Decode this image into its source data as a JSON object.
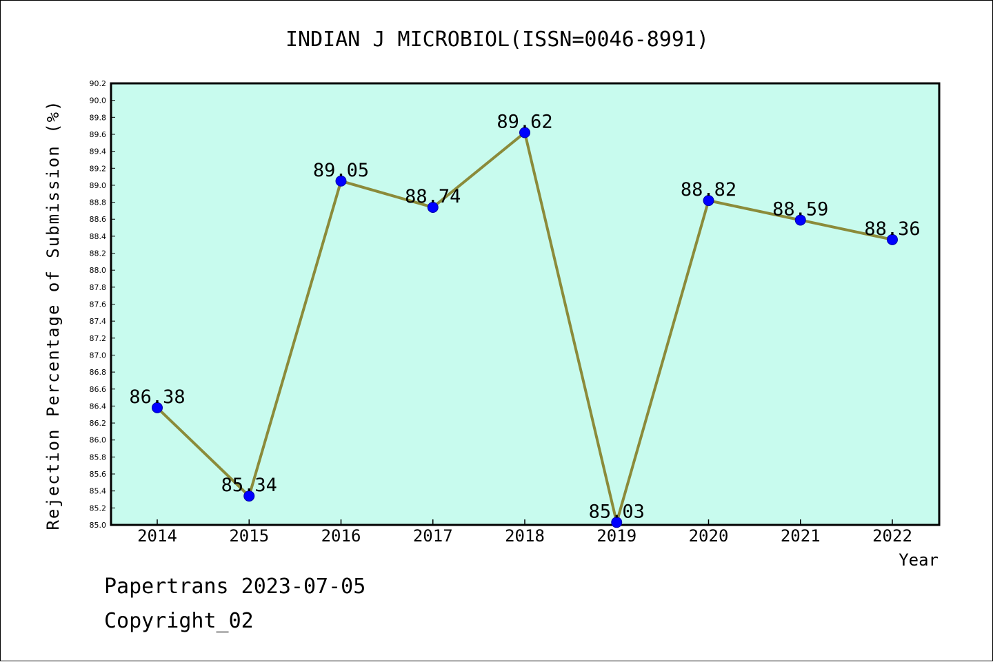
{
  "chart_data": {
    "type": "line",
    "title": "INDIAN J MICROBIOL(ISSN=0046-8991)",
    "xlabel": "Year",
    "ylabel": "Rejection Percentage of Submission (%)",
    "categories": [
      "2014",
      "2015",
      "2016",
      "2017",
      "2018",
      "2019",
      "2020",
      "2021",
      "2022"
    ],
    "series": [
      {
        "values": [
          86.38,
          85.34,
          89.05,
          88.74,
          89.62,
          85.03,
          88.82,
          88.59,
          88.36
        ]
      }
    ],
    "data_labels": [
      "86.38",
      "85.34",
      "89.05",
      "88.74",
      "89.62",
      "85.03",
      "88.82",
      "88.59",
      "88.36"
    ],
    "ylim": [
      85.0,
      90.2
    ],
    "yticks": [
      "85.0",
      "85.2",
      "85.4",
      "85.6",
      "85.8",
      "86.0",
      "86.2",
      "86.4",
      "86.6",
      "86.8",
      "87.0",
      "87.2",
      "87.4",
      "87.6",
      "87.8",
      "88.0",
      "88.2",
      "88.4",
      "88.6",
      "88.8",
      "89.0",
      "89.2",
      "89.4",
      "89.6",
      "89.8",
      "90.0",
      "90.2"
    ],
    "grid": false,
    "colors": {
      "plot_background": "#c8fbee",
      "line": "#8b8b3a",
      "marker": "#0000ff"
    }
  },
  "footer": {
    "source": "Papertrans 2023-07-05",
    "copyright": "Copyright_02"
  }
}
